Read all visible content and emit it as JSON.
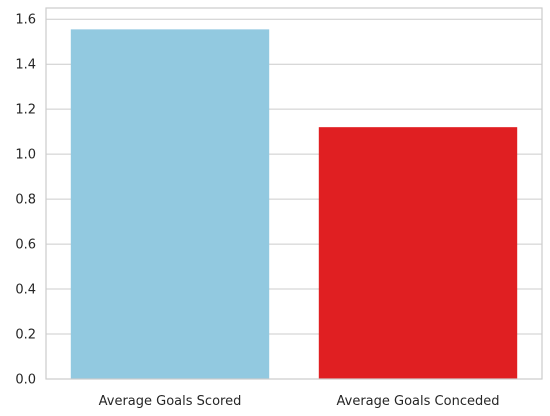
{
  "chart_data": {
    "type": "bar",
    "categories": [
      "Average Goals Scored",
      "Average Goals Conceded"
    ],
    "values": [
      1.555,
      1.12
    ],
    "colors": [
      "#92c9e0",
      "#e01f22"
    ],
    "title": "",
    "xlabel": "",
    "ylabel": "",
    "ylim": [
      0,
      1.65
    ],
    "yticks": [
      "0.0",
      "0.2",
      "0.4",
      "0.6",
      "0.8",
      "1.0",
      "1.2",
      "1.4",
      "1.6"
    ],
    "ytick_values": [
      0,
      0.2,
      0.4,
      0.6,
      0.8,
      1.0,
      1.2,
      1.4,
      1.6
    ],
    "grid": "horizontal",
    "grid_color": "#cccccc",
    "legend": "none"
  }
}
